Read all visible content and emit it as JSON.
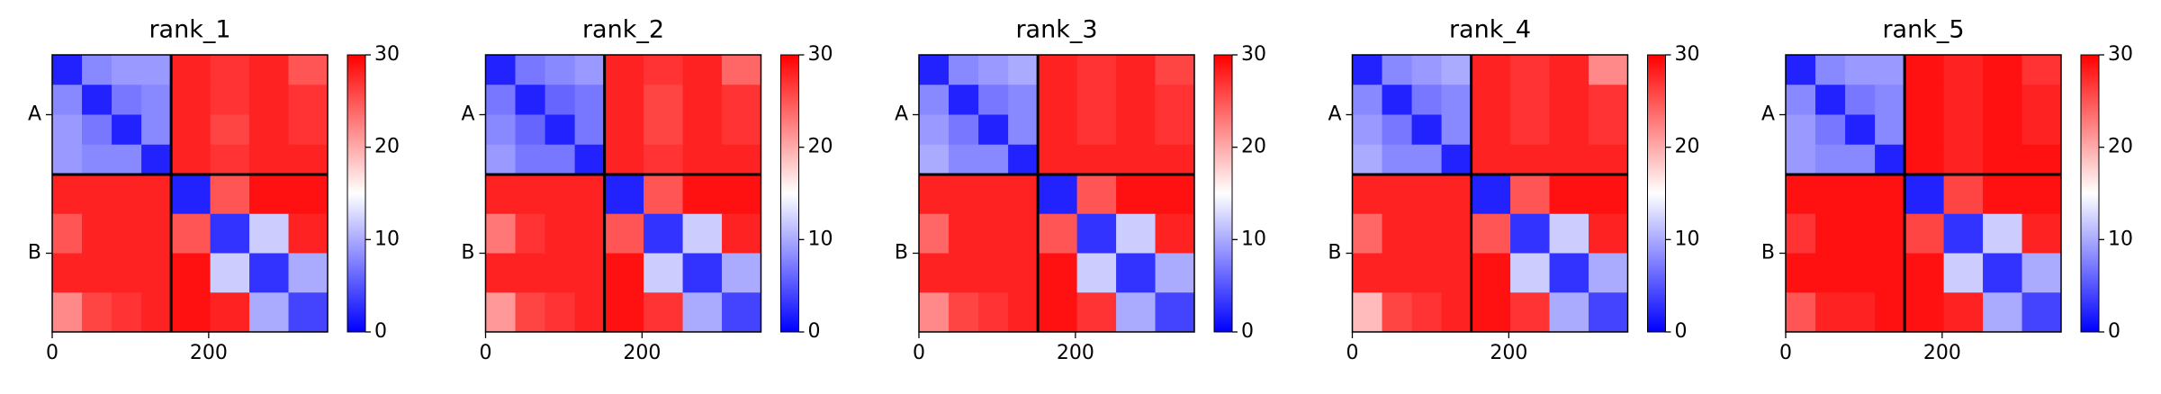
{
  "chart_data": [
    {
      "type": "heatmap",
      "title": "rank_1",
      "bins": [
        0,
        38,
        76,
        114,
        152,
        202,
        252,
        302,
        352
      ],
      "xlim": [
        0,
        352
      ],
      "xticks": [
        0,
        200
      ],
      "ylim": [
        0,
        352
      ],
      "y_inverted": true,
      "yticks": [
        {
          "value": 76,
          "label": "A"
        },
        {
          "value": 252,
          "label": "B"
        }
      ],
      "boundaries": [
        152
      ],
      "clim": [
        0,
        30
      ],
      "cticks": [
        0,
        10,
        20,
        30
      ],
      "cmap": [
        "#0000ff",
        "#ffffff",
        "#ff0000"
      ],
      "z": [
        [
          2,
          8,
          9,
          9,
          28,
          27,
          28,
          25
        ],
        [
          8,
          2,
          7,
          8,
          28,
          27,
          28,
          27
        ],
        [
          9,
          7,
          2,
          8,
          28,
          26,
          28,
          27
        ],
        [
          9,
          8,
          8,
          2,
          28,
          27,
          28,
          28
        ],
        [
          28,
          28,
          28,
          28,
          2,
          25,
          29,
          29
        ],
        [
          25,
          28,
          28,
          28,
          25,
          3,
          12,
          28
        ],
        [
          28,
          28,
          28,
          28,
          29,
          12,
          3,
          10
        ],
        [
          22,
          26,
          27,
          28,
          29,
          28,
          10,
          4
        ]
      ]
    },
    {
      "type": "heatmap",
      "title": "rank_2",
      "bins": [
        0,
        38,
        76,
        114,
        152,
        202,
        252,
        302,
        352
      ],
      "xlim": [
        0,
        352
      ],
      "xticks": [
        0,
        200
      ],
      "ylim": [
        0,
        352
      ],
      "y_inverted": true,
      "yticks": [
        {
          "value": 76,
          "label": "A"
        },
        {
          "value": 252,
          "label": "B"
        }
      ],
      "boundaries": [
        152
      ],
      "clim": [
        0,
        30
      ],
      "cticks": [
        0,
        10,
        20,
        30
      ],
      "cmap": [
        "#0000ff",
        "#ffffff",
        "#ff0000"
      ],
      "z": [
        [
          2,
          7,
          8,
          9,
          28,
          27,
          28,
          24
        ],
        [
          7,
          2,
          6,
          7,
          28,
          26,
          28,
          27
        ],
        [
          8,
          6,
          2,
          7,
          28,
          26,
          28,
          27
        ],
        [
          9,
          7,
          7,
          2,
          28,
          27,
          28,
          28
        ],
        [
          28,
          28,
          28,
          28,
          2,
          25,
          29,
          29
        ],
        [
          23,
          27,
          28,
          28,
          25,
          3,
          12,
          28
        ],
        [
          28,
          28,
          28,
          28,
          29,
          12,
          3,
          10
        ],
        [
          21,
          26,
          27,
          28,
          29,
          27,
          10,
          4
        ]
      ]
    },
    {
      "type": "heatmap",
      "title": "rank_3",
      "bins": [
        0,
        38,
        76,
        114,
        152,
        202,
        252,
        302,
        352
      ],
      "xlim": [
        0,
        352
      ],
      "xticks": [
        0,
        200
      ],
      "ylim": [
        0,
        352
      ],
      "y_inverted": true,
      "yticks": [
        {
          "value": 76,
          "label": "A"
        },
        {
          "value": 252,
          "label": "B"
        }
      ],
      "boundaries": [
        152
      ],
      "clim": [
        0,
        30
      ],
      "cticks": [
        0,
        10,
        20,
        30
      ],
      "cmap": [
        "#0000ff",
        "#ffffff",
        "#ff0000"
      ],
      "z": [
        [
          2,
          8,
          9,
          10,
          28,
          27,
          28,
          26
        ],
        [
          8,
          2,
          7,
          8,
          28,
          27,
          28,
          27
        ],
        [
          9,
          7,
          2,
          8,
          28,
          27,
          28,
          27
        ],
        [
          10,
          8,
          8,
          2,
          28,
          28,
          28,
          28
        ],
        [
          28,
          28,
          28,
          28,
          2,
          25,
          29,
          29
        ],
        [
          24,
          28,
          28,
          28,
          25,
          3,
          12,
          28
        ],
        [
          28,
          28,
          28,
          28,
          29,
          12,
          3,
          10
        ],
        [
          22,
          26,
          27,
          28,
          29,
          27,
          10,
          4
        ]
      ]
    },
    {
      "type": "heatmap",
      "title": "rank_4",
      "bins": [
        0,
        38,
        76,
        114,
        152,
        202,
        252,
        302,
        352
      ],
      "xlim": [
        0,
        352
      ],
      "xticks": [
        0,
        200
      ],
      "ylim": [
        0,
        352
      ],
      "y_inverted": true,
      "yticks": [
        {
          "value": 76,
          "label": "A"
        },
        {
          "value": 252,
          "label": "B"
        }
      ],
      "boundaries": [
        152
      ],
      "clim": [
        0,
        30
      ],
      "cticks": [
        0,
        10,
        20,
        30
      ],
      "cmap": [
        "#0000ff",
        "#ffffff",
        "#ff0000"
      ],
      "z": [
        [
          2,
          8,
          9,
          10,
          28,
          27,
          28,
          22
        ],
        [
          8,
          2,
          7,
          8,
          28,
          27,
          28,
          27
        ],
        [
          9,
          7,
          2,
          8,
          28,
          27,
          28,
          27
        ],
        [
          10,
          8,
          8,
          2,
          28,
          28,
          28,
          28
        ],
        [
          28,
          28,
          28,
          28,
          2,
          25,
          29,
          29
        ],
        [
          24,
          28,
          28,
          28,
          25,
          3,
          12,
          28
        ],
        [
          28,
          28,
          28,
          28,
          29,
          12,
          3,
          10
        ],
        [
          19,
          26,
          27,
          28,
          29,
          27,
          10,
          4
        ]
      ]
    },
    {
      "type": "heatmap",
      "title": "rank_5",
      "bins": [
        0,
        38,
        76,
        114,
        152,
        202,
        252,
        302,
        352
      ],
      "xlim": [
        0,
        352
      ],
      "xticks": [
        0,
        200
      ],
      "ylim": [
        0,
        352
      ],
      "y_inverted": true,
      "yticks": [
        {
          "value": 76,
          "label": "A"
        },
        {
          "value": 252,
          "label": "B"
        }
      ],
      "boundaries": [
        152
      ],
      "clim": [
        0,
        30
      ],
      "cticks": [
        0,
        10,
        20,
        30
      ],
      "cmap": [
        "#0000ff",
        "#ffffff",
        "#ff0000"
      ],
      "z": [
        [
          2,
          8,
          9,
          9,
          29,
          28,
          29,
          27
        ],
        [
          8,
          2,
          7,
          8,
          29,
          28,
          29,
          28
        ],
        [
          9,
          7,
          2,
          8,
          29,
          28,
          29,
          28
        ],
        [
          9,
          8,
          8,
          2,
          29,
          28,
          29,
          29
        ],
        [
          29,
          29,
          29,
          29,
          2,
          26,
          29,
          29
        ],
        [
          27,
          29,
          29,
          29,
          26,
          3,
          12,
          28
        ],
        [
          29,
          29,
          29,
          29,
          29,
          12,
          3,
          10
        ],
        [
          25,
          28,
          28,
          29,
          29,
          28,
          10,
          4
        ]
      ]
    }
  ]
}
